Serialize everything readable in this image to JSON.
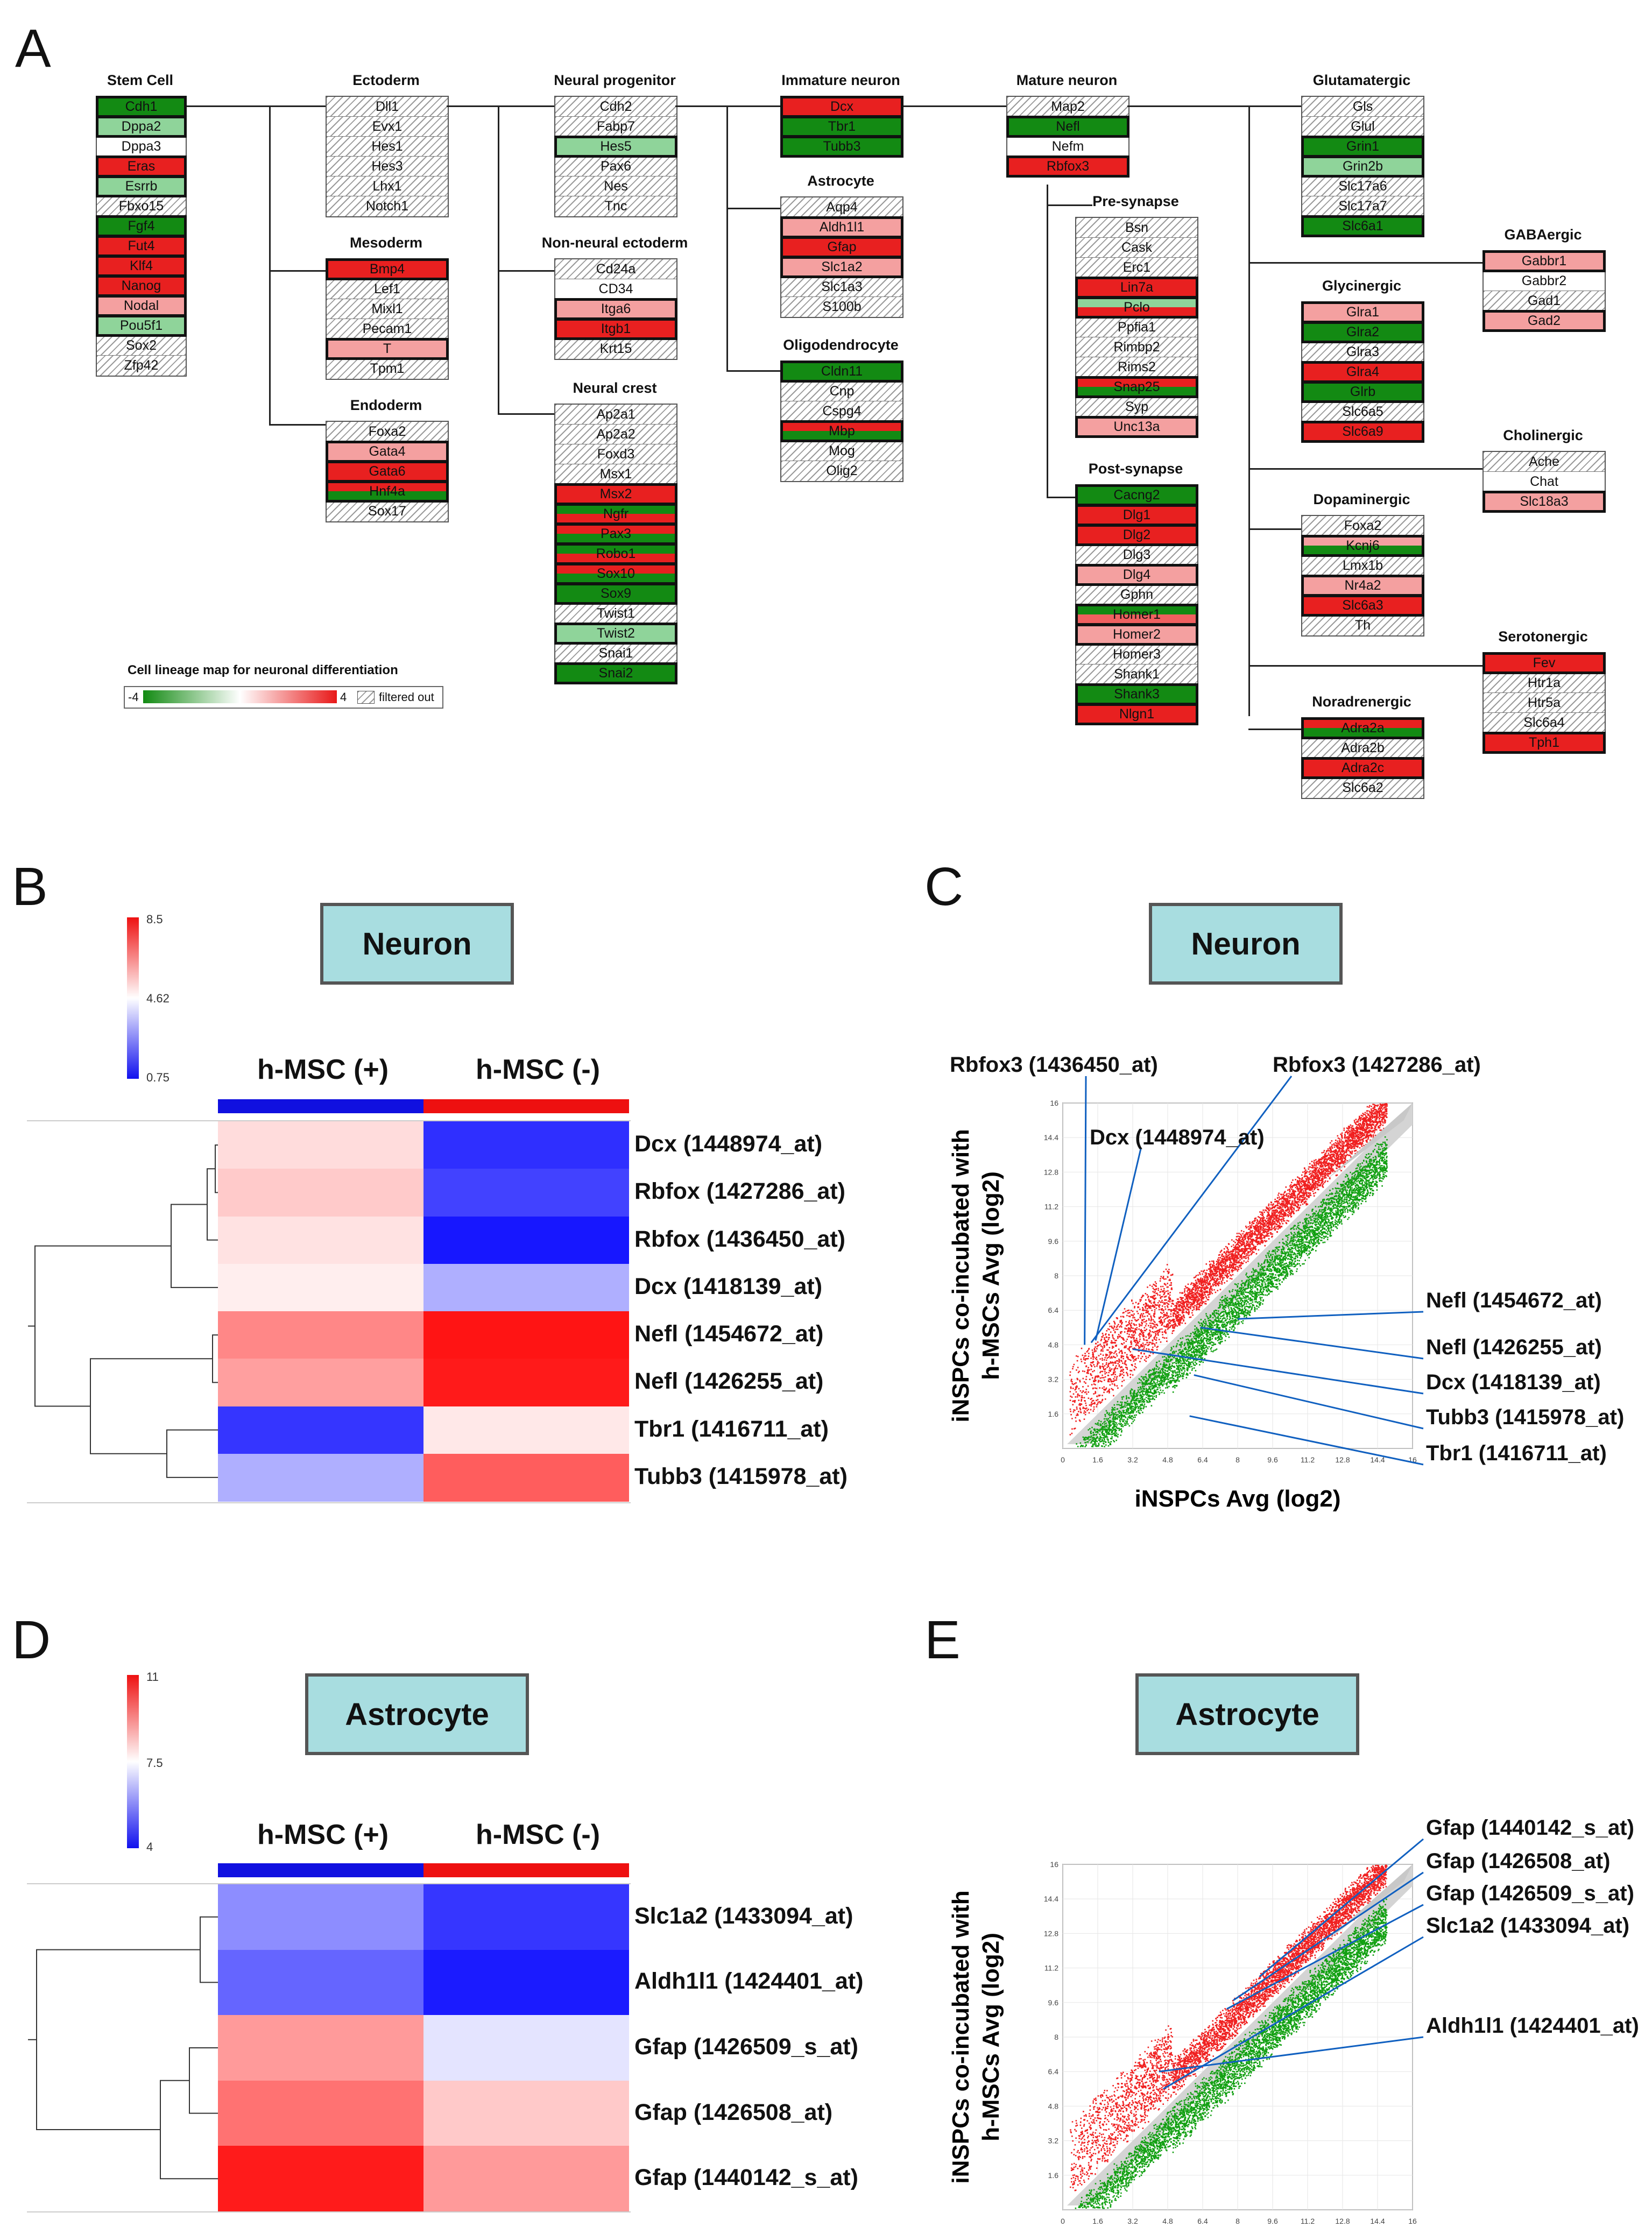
{
  "panel_labels": {
    "a": "A",
    "b": "B",
    "c": "C",
    "d": "D",
    "e": "E"
  },
  "colors": {
    "red": "#e82020",
    "green": "#138a13",
    "lightred": "#f4a0a0",
    "lightgreen": "#8fd49a",
    "medred": "#f06060",
    "header_blue": "#1010e0",
    "header_red": "#ee1010"
  },
  "lineage": {
    "legend_title": "Cell lineage map for neuronal differentiation",
    "legend_min": "-4",
    "legend_max": "4",
    "legend_filtered": "filtered out",
    "groups": [
      {
        "id": "stem",
        "title": "Stem Cell",
        "genes": [
          {
            "n": "Cdh1",
            "c": "G",
            "o": 1
          },
          {
            "n": "Dppa2",
            "c": "g",
            "o": 1
          },
          {
            "n": "Dppa3",
            "c": "W",
            "o": 0
          },
          {
            "n": "Eras",
            "c": "R",
            "o": 1
          },
          {
            "n": "Esrrb",
            "c": "g",
            "o": 1
          },
          {
            "n": "Fbxo15",
            "c": "H",
            "o": 0
          },
          {
            "n": "Fgf4",
            "c": "G",
            "o": 1
          },
          {
            "n": "Fut4",
            "c": "R",
            "o": 1
          },
          {
            "n": "Klf4",
            "c": "R",
            "o": 1
          },
          {
            "n": "Nanog",
            "c": "R",
            "o": 1
          },
          {
            "n": "Nodal",
            "c": "r",
            "o": 1
          },
          {
            "n": "Pou5f1",
            "c": "g",
            "o": 1
          },
          {
            "n": "Sox2",
            "c": "H",
            "o": 0
          },
          {
            "n": "Zfp42",
            "c": "H",
            "o": 0
          }
        ]
      },
      {
        "id": "ecto",
        "title": "Ectoderm",
        "genes": [
          {
            "n": "Dll1",
            "c": "H",
            "o": 0
          },
          {
            "n": "Evx1",
            "c": "H",
            "o": 0
          },
          {
            "n": "Hes1",
            "c": "H",
            "o": 0
          },
          {
            "n": "Hes3",
            "c": "H",
            "o": 0
          },
          {
            "n": "Lhx1",
            "c": "H",
            "o": 0
          },
          {
            "n": "Notch1",
            "c": "H",
            "o": 0
          }
        ]
      },
      {
        "id": "meso",
        "title": "Mesoderm",
        "genes": [
          {
            "n": "Bmp4",
            "c": "R",
            "o": 1
          },
          {
            "n": "Lef1",
            "c": "H",
            "o": 0
          },
          {
            "n": "Mixl1",
            "c": "H",
            "o": 0
          },
          {
            "n": "Pecam1",
            "c": "H",
            "o": 0
          },
          {
            "n": "T",
            "c": "r",
            "o": 1
          },
          {
            "n": "Tpm1",
            "c": "H",
            "o": 0
          }
        ]
      },
      {
        "id": "endo",
        "title": "Endoderm",
        "genes": [
          {
            "n": "Foxa2",
            "c": "H",
            "o": 0
          },
          {
            "n": "Gata4",
            "c": "r",
            "o": 1
          },
          {
            "n": "Gata6",
            "c": "R",
            "o": 1
          },
          {
            "n": "Hnf4a",
            "c": "RG",
            "o": 1
          },
          {
            "n": "Sox17",
            "c": "H",
            "o": 0
          }
        ]
      },
      {
        "id": "np",
        "title": "Neural progenitor",
        "genes": [
          {
            "n": "Cdh2",
            "c": "H",
            "o": 0
          },
          {
            "n": "Fabp7",
            "c": "H",
            "o": 0
          },
          {
            "n": "Hes5",
            "c": "g",
            "o": 1
          },
          {
            "n": "Pax6",
            "c": "H",
            "o": 0
          },
          {
            "n": "Nes",
            "c": "H",
            "o": 0
          },
          {
            "n": "Tnc",
            "c": "H",
            "o": 0
          }
        ]
      },
      {
        "id": "nne",
        "title": "Non-neural ectoderm",
        "genes": [
          {
            "n": "Cd24a",
            "c": "H",
            "o": 0
          },
          {
            "n": "CD34",
            "c": "W",
            "o": 0
          },
          {
            "n": "Itga6",
            "c": "r",
            "o": 1
          },
          {
            "n": "Itgb1",
            "c": "R",
            "o": 1
          },
          {
            "n": "Krt15",
            "c": "H",
            "o": 0
          }
        ]
      },
      {
        "id": "nc",
        "title": "Neural crest",
        "genes": [
          {
            "n": "Ap2a1",
            "c": "H",
            "o": 0
          },
          {
            "n": "Ap2a2",
            "c": "H",
            "o": 0
          },
          {
            "n": "Foxd3",
            "c": "H",
            "o": 0
          },
          {
            "n": "Msx1",
            "c": "H",
            "o": 0
          },
          {
            "n": "Msx2",
            "c": "R",
            "o": 1
          },
          {
            "n": "Ngfr",
            "c": "GR",
            "o": 1
          },
          {
            "n": "Pax3",
            "c": "RG",
            "o": 1
          },
          {
            "n": "Robo1",
            "c": "GR",
            "o": 1
          },
          {
            "n": "Sox10",
            "c": "RG",
            "o": 1
          },
          {
            "n": "Sox9",
            "c": "G",
            "o": 1
          },
          {
            "n": "Twist1",
            "c": "H",
            "o": 0
          },
          {
            "n": "Twist2",
            "c": "g",
            "o": 1
          },
          {
            "n": "Snai1",
            "c": "H",
            "o": 0
          },
          {
            "n": "Snai2",
            "c": "G",
            "o": 1
          }
        ]
      },
      {
        "id": "imm",
        "title": "Immature neuron",
        "genes": [
          {
            "n": "Dcx",
            "c": "R",
            "o": 1
          },
          {
            "n": "Tbr1",
            "c": "G",
            "o": 1
          },
          {
            "n": "Tubb3",
            "c": "G",
            "o": 1
          }
        ]
      },
      {
        "id": "astro",
        "title": "Astrocyte",
        "genes": [
          {
            "n": "Aqp4",
            "c": "H",
            "o": 0
          },
          {
            "n": "Aldh1l1",
            "c": "r",
            "o": 1
          },
          {
            "n": "Gfap",
            "c": "R",
            "o": 1
          },
          {
            "n": "Slc1a2",
            "c": "r",
            "o": 1
          },
          {
            "n": "Slc1a3",
            "c": "H",
            "o": 0
          },
          {
            "n": "S100b",
            "c": "H",
            "o": 0
          }
        ]
      },
      {
        "id": "oligo",
        "title": "Oligodendrocyte",
        "genes": [
          {
            "n": "Cldn11",
            "c": "G",
            "o": 1
          },
          {
            "n": "Cnp",
            "c": "H",
            "o": 0
          },
          {
            "n": "Cspg4",
            "c": "H",
            "o": 0
          },
          {
            "n": "Mbp",
            "c": "RG",
            "o": 1
          },
          {
            "n": "Mog",
            "c": "H",
            "o": 0
          },
          {
            "n": "Olig2",
            "c": "H",
            "o": 0
          }
        ]
      },
      {
        "id": "mat",
        "title": "Mature neuron",
        "genes": [
          {
            "n": "Map2",
            "c": "H",
            "o": 0
          },
          {
            "n": "Nefl",
            "c": "G",
            "o": 1
          },
          {
            "n": "Nefm",
            "c": "W",
            "o": 0
          },
          {
            "n": "Rbfox3",
            "c": "R",
            "o": 1
          }
        ]
      },
      {
        "id": "pre",
        "title": "Pre-synapse",
        "genes": [
          {
            "n": "Bsn",
            "c": "H",
            "o": 0
          },
          {
            "n": "Cask",
            "c": "H",
            "o": 0
          },
          {
            "n": "Erc1",
            "c": "H",
            "o": 0
          },
          {
            "n": "Lin7a",
            "c": "R",
            "o": 1
          },
          {
            "n": "Pclo",
            "c": "gR",
            "o": 1
          },
          {
            "n": "Ppfia1",
            "c": "H",
            "o": 0
          },
          {
            "n": "Rimbp2",
            "c": "H",
            "o": 0
          },
          {
            "n": "Rims2",
            "c": "H",
            "o": 0
          },
          {
            "n": "Snap25",
            "c": "RG",
            "o": 1
          },
          {
            "n": "Syp",
            "c": "H",
            "o": 0
          },
          {
            "n": "Unc13a",
            "c": "r",
            "o": 1
          }
        ]
      },
      {
        "id": "post",
        "title": "Post-synapse",
        "genes": [
          {
            "n": "Cacng2",
            "c": "G",
            "o": 1
          },
          {
            "n": "Dlg1",
            "c": "R",
            "o": 1
          },
          {
            "n": "Dlg2",
            "c": "R",
            "o": 1
          },
          {
            "n": "Dlg3",
            "c": "H",
            "o": 0
          },
          {
            "n": "Dlg4",
            "c": "r",
            "o": 1
          },
          {
            "n": "Gphn",
            "c": "H",
            "o": 0
          },
          {
            "n": "Homer1",
            "c": "Gm",
            "o": 1
          },
          {
            "n": "Homer2",
            "c": "r",
            "o": 1
          },
          {
            "n": "Homer3",
            "c": "H",
            "o": 0
          },
          {
            "n": "Shank1",
            "c": "H",
            "o": 0
          },
          {
            "n": "Shank3",
            "c": "G",
            "o": 1
          },
          {
            "n": "Nlgn1",
            "c": "R",
            "o": 1
          }
        ]
      },
      {
        "id": "glut",
        "title": "Glutamatergic",
        "genes": [
          {
            "n": "Gls",
            "c": "H",
            "o": 0
          },
          {
            "n": "Glul",
            "c": "H",
            "o": 0
          },
          {
            "n": "Grin1",
            "c": "G",
            "o": 1
          },
          {
            "n": "Grin2b",
            "c": "g",
            "o": 1
          },
          {
            "n": "Slc17a6",
            "c": "H",
            "o": 0
          },
          {
            "n": "Slc17a7",
            "c": "H",
            "o": 0
          },
          {
            "n": "Slc6a1",
            "c": "G",
            "o": 1
          }
        ]
      },
      {
        "id": "gaba",
        "title": "GABAergic",
        "genes": [
          {
            "n": "Gabbr1",
            "c": "r",
            "o": 1
          },
          {
            "n": "Gabbr2",
            "c": "W",
            "o": 0
          },
          {
            "n": "Gad1",
            "c": "H",
            "o": 0
          },
          {
            "n": "Gad2",
            "c": "r",
            "o": 1
          }
        ]
      },
      {
        "id": "gly",
        "title": "Glycinergic",
        "genes": [
          {
            "n": "Glra1",
            "c": "r",
            "o": 1
          },
          {
            "n": "Glra2",
            "c": "G",
            "o": 1
          },
          {
            "n": "Glra3",
            "c": "H",
            "o": 0
          },
          {
            "n": "Glra4",
            "c": "R",
            "o": 1
          },
          {
            "n": "Glrb",
            "c": "G",
            "o": 1
          },
          {
            "n": "Slc6a5",
            "c": "H",
            "o": 0
          },
          {
            "n": "Slc6a9",
            "c": "R",
            "o": 1
          }
        ]
      },
      {
        "id": "chol",
        "title": "Cholinergic",
        "genes": [
          {
            "n": "Ache",
            "c": "H",
            "o": 0
          },
          {
            "n": "Chat",
            "c": "W",
            "o": 0
          },
          {
            "n": "Slc18a3",
            "c": "r",
            "o": 1
          }
        ]
      },
      {
        "id": "dopa",
        "title": "Dopaminergic",
        "genes": [
          {
            "n": "Foxa2",
            "c": "H",
            "o": 0
          },
          {
            "n": "Kcnj6",
            "c": "rG",
            "o": 1
          },
          {
            "n": "Lmx1b",
            "c": "H",
            "o": 0
          },
          {
            "n": "Nr4a2",
            "c": "r",
            "o": 1
          },
          {
            "n": "Slc6a3",
            "c": "R",
            "o": 1
          },
          {
            "n": "Th",
            "c": "H",
            "o": 0
          }
        ]
      },
      {
        "id": "sero",
        "title": "Serotonergic",
        "genes": [
          {
            "n": "Fev",
            "c": "R",
            "o": 1
          },
          {
            "n": "Htr1a",
            "c": "H",
            "o": 0
          },
          {
            "n": "Htr5a",
            "c": "H",
            "o": 0
          },
          {
            "n": "Slc6a4",
            "c": "H",
            "o": 0
          },
          {
            "n": "Tph1",
            "c": "R",
            "o": 1
          }
        ]
      },
      {
        "id": "nora",
        "title": "Noradrenergic",
        "genes": [
          {
            "n": "Adra2a",
            "c": "RG",
            "o": 1
          },
          {
            "n": "Adra2b",
            "c": "H",
            "o": 0
          },
          {
            "n": "Adra2c",
            "c": "R",
            "o": 1
          },
          {
            "n": "Slc6a2",
            "c": "H",
            "o": 0
          }
        ]
      }
    ]
  },
  "panel_b": {
    "title": "Neuron",
    "col_plus": "h-MSC (+)",
    "col_minus": "h-MSC (-)",
    "scale_max": "8.5",
    "scale_mid": "4.62",
    "scale_min": "0.75"
  },
  "panel_d": {
    "title": "Astrocyte",
    "col_plus": "h-MSC (+)",
    "col_minus": "h-MSC (-)",
    "scale_max": "11",
    "scale_mid": "7.5",
    "scale_min": "4"
  },
  "panel_c": {
    "title": "Neuron",
    "ylabel1": "iNSPCs co-incubated with",
    "ylabel2": "h-MSCs  Avg (log2)",
    "xlabel": "iNSPCs  Avg (log2)"
  },
  "panel_e": {
    "title": "Astrocyte",
    "ylabel1": "iNSPCs co-incubated with",
    "ylabel2": "h-MSCs  Avg (log2)",
    "xlabel": "iNSPCs  Avg (log2)"
  },
  "chart_data": [
    {
      "type": "heatmap",
      "panel": "B",
      "title": "Neuron",
      "columns": [
        "h-MSC (+)",
        "h-MSC (-)"
      ],
      "rows": [
        "Dcx (1448974_at)",
        "Rbfox (1427286_at)",
        "Rbfox (1436450_at)",
        "Dcx (1418139_at)",
        "Nefl (1454672_at)",
        "Nefl (1426255_at)",
        "Tbr1 (1416711_at)",
        "Tubb3 (1415978_at)"
      ],
      "values": [
        [
          5.2,
          1.2
        ],
        [
          5.5,
          1.5
        ],
        [
          5.1,
          0.8
        ],
        [
          4.9,
          3.3
        ],
        [
          6.6,
          8.5
        ],
        [
          6.2,
          8.4
        ],
        [
          1.3,
          5.0
        ],
        [
          3.3,
          7.3
        ]
      ],
      "scale": {
        "min": 0.75,
        "mid": 4.62,
        "max": 8.5
      }
    },
    {
      "type": "heatmap",
      "panel": "D",
      "title": "Astrocyte",
      "columns": [
        "h-MSC (+)",
        "h-MSC (-)"
      ],
      "rows": [
        "Slc1a2 (1433094_at)",
        "Aldh1l1 (1424401_at)",
        "Gfap (1426509_s_at)",
        "Gfap (1426508_at)",
        "Gfap (1440142_s_at)"
      ],
      "values": [
        [
          5.8,
          4.5
        ],
        [
          5.2,
          4.1
        ],
        [
          9.0,
          7.1
        ],
        [
          9.6,
          8.3
        ],
        [
          10.9,
          9.0
        ]
      ],
      "scale": {
        "min": 4,
        "mid": 7.5,
        "max": 11
      }
    },
    {
      "type": "scatter",
      "panel": "C",
      "title": "Neuron",
      "xlabel": "iNSPCs  Avg (log2)",
      "ylabel": "iNSPCs co-incubated with h-MSCs  Avg (log2)",
      "xlim": [
        0,
        16
      ],
      "ylim": [
        0,
        16
      ],
      "ticks": [
        "0",
        "1.6",
        "3.2",
        "4.8",
        "6.4",
        "8",
        "9.6",
        "11.2",
        "12.8",
        "14.4",
        "16"
      ],
      "annotations": [
        {
          "label": "Rbfox3 (1436450_at)",
          "x": 1.0,
          "y": 4.8
        },
        {
          "label": "Rbfox3 (1427286_at)",
          "x": 1.3,
          "y": 4.9
        },
        {
          "label": "Dcx (1448974_at)",
          "x": 1.5,
          "y": 5.0
        },
        {
          "label": "Nefl (1454672_at)",
          "x": 8.0,
          "y": 6.0
        },
        {
          "label": "Nefl (1426255_at)",
          "x": 6.3,
          "y": 5.6
        },
        {
          "label": "Dcx (1418139_at)",
          "x": 3.2,
          "y": 4.6
        },
        {
          "label": "Tubb3 (1415978_at)",
          "x": 6.0,
          "y": 3.4
        },
        {
          "label": "Tbr1 (1416711_at)",
          "x": 5.8,
          "y": 1.5
        }
      ]
    },
    {
      "type": "scatter",
      "panel": "E",
      "title": "Astrocyte",
      "xlabel": "iNSPCs  Avg (log2)",
      "ylabel": "iNSPCs co-incubated with h-MSCs  Avg (log2)",
      "xlim": [
        0,
        16
      ],
      "ylim": [
        0,
        16
      ],
      "ticks": [
        "0",
        "1.6",
        "3.2",
        "4.8",
        "6.4",
        "8",
        "9.6",
        "11.2",
        "12.8",
        "14.4",
        "16"
      ],
      "annotations": [
        {
          "label": "Gfap (1440142_s_at)",
          "x": 9.0,
          "y": 10.8
        },
        {
          "label": "Gfap (1426508_at)",
          "x": 7.8,
          "y": 9.7
        },
        {
          "label": "Gfap (1426509_s_at)",
          "x": 7.5,
          "y": 9.3
        },
        {
          "label": "Slc1a2 (1433094_at)",
          "x": 4.6,
          "y": 5.6
        },
        {
          "label": "Aldh1l1 (1424401_at)",
          "x": 4.4,
          "y": 6.4
        }
      ]
    }
  ]
}
